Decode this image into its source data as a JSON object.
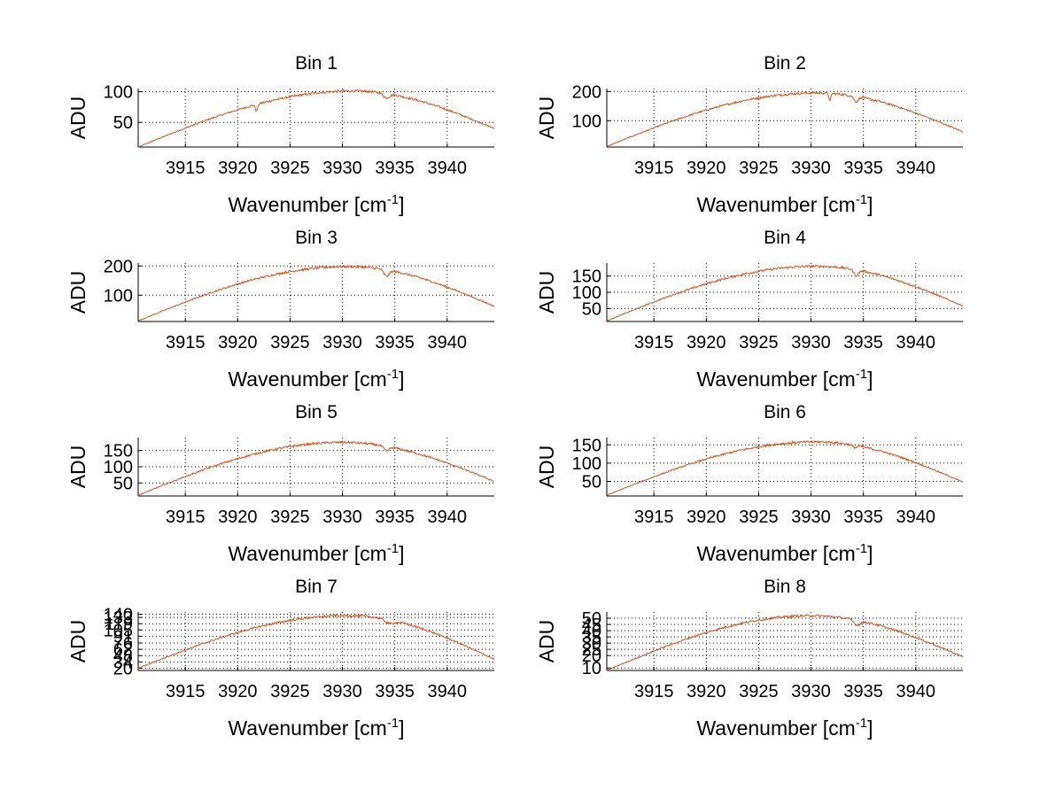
{
  "figure": {
    "background": "#ffffff",
    "line_color": "#d95319"
  },
  "chart_data": [
    {
      "type": "line",
      "title": "Bin 1",
      "xlabel": "Wavenumber [cm",
      "xlabel_sup": "-1",
      "xlabel_end": "]",
      "ylabel": "ADU",
      "xlim": [
        3910.5,
        3944.5
      ],
      "ylim": [
        10,
        105
      ],
      "xticks": [
        3915,
        3920,
        3925,
        3930,
        3935,
        3940
      ],
      "yticks": [
        50,
        100
      ],
      "series": [
        {
          "name": "Bin 1",
          "color": "#d95319",
          "peak": 101,
          "start": 10,
          "end": 40,
          "center": 3931,
          "dips": [
            {
              "x": 3921.8,
              "depth": 11,
              "width": 0.15
            },
            {
              "x": 3934.2,
              "depth": 7,
              "width": 0.4
            }
          ]
        }
      ]
    },
    {
      "type": "line",
      "title": "Bin 2",
      "xlabel": "Wavenumber [cm",
      "xlabel_sup": "-1",
      "xlabel_end": "]",
      "ylabel": "ADU",
      "xlim": [
        3910.5,
        3944.5
      ],
      "ylim": [
        10,
        210
      ],
      "xticks": [
        3915,
        3920,
        3925,
        3930,
        3935,
        3940
      ],
      "yticks": [
        100,
        200
      ],
      "series": [
        {
          "name": "Bin 2",
          "color": "#d95319",
          "peak": 195,
          "start": 12,
          "end": 62,
          "center": 3930.5,
          "dips": [
            {
              "x": 3931.8,
              "depth": 28,
              "width": 0.12
            },
            {
              "x": 3934.3,
              "depth": 18,
              "width": 0.3
            }
          ]
        }
      ]
    },
    {
      "type": "line",
      "title": "Bin 3",
      "xlabel": "Wavenumber [cm",
      "xlabel_sup": "-1",
      "xlabel_end": "]",
      "ylabel": "ADU",
      "xlim": [
        3910.5,
        3944.5
      ],
      "ylim": [
        10,
        210
      ],
      "xticks": [
        3915,
        3920,
        3925,
        3930,
        3935,
        3940
      ],
      "yticks": [
        100,
        200
      ],
      "series": [
        {
          "name": "Bin 3",
          "color": "#d95319",
          "peak": 198,
          "start": 12,
          "end": 62,
          "center": 3930.5,
          "dips": [
            {
              "x": 3934.2,
              "depth": 22,
              "width": 0.35
            }
          ]
        }
      ]
    },
    {
      "type": "line",
      "title": "Bin 4",
      "xlabel": "Wavenumber [cm",
      "xlabel_sup": "-1",
      "xlabel_end": "]",
      "ylabel": "ADU",
      "xlim": [
        3910.5,
        3944.5
      ],
      "ylim": [
        10,
        190
      ],
      "xticks": [
        3915,
        3920,
        3925,
        3930,
        3935,
        3940
      ],
      "yticks": [
        50,
        100,
        150
      ],
      "series": [
        {
          "name": "Bin 4",
          "color": "#d95319",
          "peak": 180,
          "start": 12,
          "end": 58,
          "center": 3930.5,
          "dips": [
            {
              "x": 3934.3,
              "depth": 18,
              "width": 0.3
            }
          ]
        }
      ]
    },
    {
      "type": "line",
      "title": "Bin 5",
      "xlabel": "Wavenumber [cm",
      "xlabel_sup": "-1",
      "xlabel_end": "]",
      "ylabel": "ADU",
      "xlim": [
        3910.5,
        3944.5
      ],
      "ylim": [
        10,
        190
      ],
      "xticks": [
        3915,
        3920,
        3925,
        3930,
        3935,
        3940
      ],
      "yticks": [
        50,
        100,
        150
      ],
      "series": [
        {
          "name": "Bin 5",
          "color": "#d95319",
          "peak": 175,
          "start": 12,
          "end": 55,
          "center": 3930,
          "dips": [
            {
              "x": 3934.2,
              "depth": 14,
              "width": 0.35
            }
          ]
        }
      ]
    },
    {
      "type": "line",
      "title": "Bin 6",
      "xlabel": "Wavenumber [cm",
      "xlabel_sup": "-1",
      "xlabel_end": "]",
      "ylabel": "ADU",
      "xlim": [
        3910.5,
        3944.5
      ],
      "ylim": [
        10,
        170
      ],
      "xticks": [
        3915,
        3920,
        3925,
        3930,
        3935,
        3940
      ],
      "yticks": [
        50,
        100,
        150
      ],
      "series": [
        {
          "name": "Bin 6",
          "color": "#d95319",
          "peak": 158,
          "start": 12,
          "end": 48,
          "center": 3930.5,
          "dips": [
            {
              "x": 3934.2,
              "depth": 6,
              "width": 0.3
            }
          ]
        }
      ]
    },
    {
      "type": "line",
      "title": "Bin 7",
      "xlabel": "Wavenumber [cm",
      "xlabel_sup": "-1",
      "xlabel_end": "]",
      "ylabel": "ADU",
      "xlim": [
        3910.5,
        3944.5
      ],
      "ylim": [
        15,
        145
      ],
      "xticks": [
        3915,
        3920,
        3925,
        3930,
        3935,
        3940
      ],
      "yticks": [
        20,
        34,
        48,
        62,
        76,
        91,
        105,
        119,
        133,
        140
      ],
      "ytick_labels": [
        "20",
        "34",
        "48",
        "62",
        "76",
        "91",
        "105",
        "119",
        "133",
        "140"
      ],
      "series": [
        {
          "name": "Bin 7",
          "color": "#d95319",
          "peak": 137,
          "start": 20,
          "end": 40,
          "center": 3930.5,
          "dips": [
            {
              "x": 3934.5,
              "depth": 8,
              "width": 0.6
            }
          ]
        }
      ]
    },
    {
      "type": "line",
      "title": "Bin 8",
      "xlabel": "Wavenumber [cm",
      "xlabel_sup": "-1",
      "xlabel_end": "]",
      "ylabel": "ADU",
      "xlim": [
        3910.5,
        3944.5
      ],
      "ylim": [
        8,
        55
      ],
      "xticks": [
        3915,
        3920,
        3925,
        3930,
        3935,
        3940
      ],
      "yticks": [
        10,
        20,
        25,
        30,
        35,
        40,
        45,
        50
      ],
      "ytick_labels": [
        "10",
        "20",
        "25",
        "30",
        "35",
        "40",
        "45",
        "50"
      ],
      "series": [
        {
          "name": "Bin 8",
          "color": "#d95319",
          "peak": 52,
          "start": 8,
          "end": 19,
          "center": 3930,
          "dips": [
            {
              "x": 3934.4,
              "depth": 4,
              "width": 0.4
            }
          ]
        }
      ]
    }
  ]
}
